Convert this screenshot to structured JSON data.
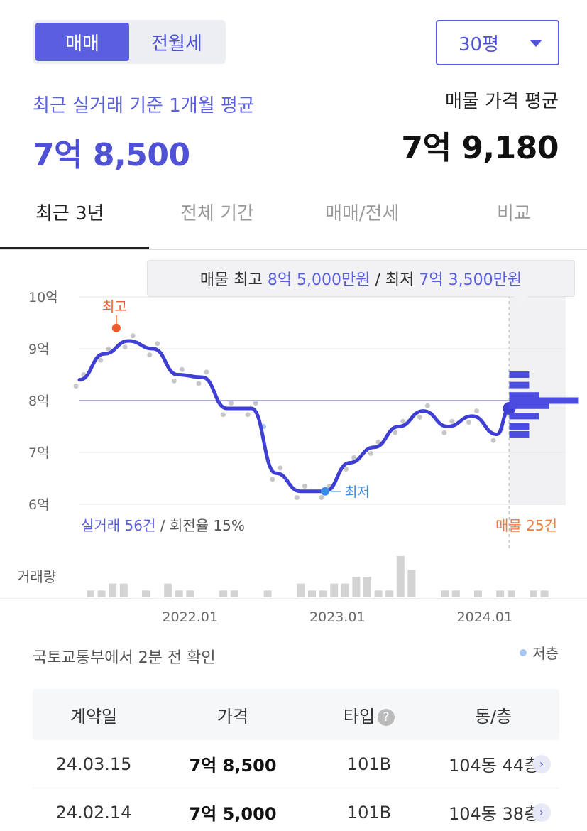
{
  "trade_toggle": {
    "options": [
      "매매",
      "전월세"
    ],
    "selected": "매매"
  },
  "size_select": {
    "value": "30평"
  },
  "recent_trade": {
    "label": "최근 실거래 기준 1개월 평균",
    "price": "7억 8,500"
  },
  "listing_avg": {
    "label": "매물 가격 평균",
    "price": "7억 9,180"
  },
  "tabs": [
    {
      "label": "최근 3년",
      "active": true
    },
    {
      "label": "전체 기간",
      "active": false
    },
    {
      "label": "매매/전세",
      "active": false
    },
    {
      "label": "비교",
      "active": false
    }
  ],
  "tooltip": {
    "prefix": "매물 최고 ",
    "max": "8억 5,000만원",
    "sep": " / 최저 ",
    "min": "7억 3,500만원"
  },
  "summary": {
    "trades": "실거래 56건",
    "turnover": " / 회전율 15%",
    "listings": "매물 25건",
    "volume_label": "거래량"
  },
  "colors": {
    "accent": "#5a5ee0",
    "high": "#f05a2a",
    "low_dot": "#a7c7f0",
    "scatter": "#c7c7c7"
  },
  "chart_data": {
    "type": "line",
    "y_unit": "억",
    "ylim": [
      6,
      10
    ],
    "yticks": [
      "10억",
      "9억",
      "8억",
      "7억",
      "6억"
    ],
    "xticks": [
      "2022.01",
      "2023.01",
      "2024.01"
    ],
    "grid": true,
    "reference_line": 8.0,
    "max_marker": {
      "label": "최고",
      "x": "2021.07",
      "y": 9.4
    },
    "min_marker": {
      "label": "최저",
      "x": "2022.12",
      "y": 6.25
    },
    "series": [
      {
        "x": [
          "2021.04",
          "2021.06",
          "2021.08",
          "2021.10",
          "2021.12",
          "2022.02",
          "2022.04",
          "2022.06",
          "2022.08",
          "2022.10",
          "2022.12",
          "2023.02",
          "2023.04",
          "2023.06",
          "2023.08",
          "2023.10",
          "2023.12",
          "2024.02",
          "2024.03"
        ],
        "values": [
          8.4,
          8.9,
          9.15,
          9.0,
          8.5,
          8.45,
          7.85,
          7.85,
          6.6,
          6.25,
          6.25,
          6.8,
          7.1,
          7.5,
          7.8,
          7.5,
          7.7,
          7.35,
          7.85
        ]
      }
    ],
    "listing_distribution": [
      {
        "price": 8.5,
        "count": 2
      },
      {
        "price": 8.3,
        "count": 2
      },
      {
        "price": 8.1,
        "count": 3
      },
      {
        "price": 8.0,
        "count": 7
      },
      {
        "price": 7.9,
        "count": 4
      },
      {
        "price": 7.7,
        "count": 3
      },
      {
        "price": 7.5,
        "count": 2
      },
      {
        "price": 7.35,
        "count": 2
      }
    ],
    "volume": [
      1,
      1,
      2,
      2,
      0,
      1,
      0,
      2,
      1,
      1,
      0,
      0,
      1,
      1,
      0,
      0,
      1,
      0,
      0,
      2,
      1,
      1,
      2,
      2,
      3,
      3,
      1,
      1,
      6,
      4,
      0,
      0,
      1,
      1,
      0,
      1,
      0,
      1,
      1,
      0,
      1,
      1
    ]
  },
  "source_text": "국토교통부에서 2분 전 확인",
  "legend_low": "저층",
  "table": {
    "headers": [
      "계약일",
      "가격",
      "타입",
      "동/층"
    ],
    "rows": [
      {
        "date": "24.03.15",
        "price": "7억 8,500",
        "type": "101B",
        "floor": "104동 44층"
      },
      {
        "date": "24.02.14",
        "price": "7억 5,000",
        "type": "101B",
        "floor": "104동 38층"
      }
    ]
  }
}
